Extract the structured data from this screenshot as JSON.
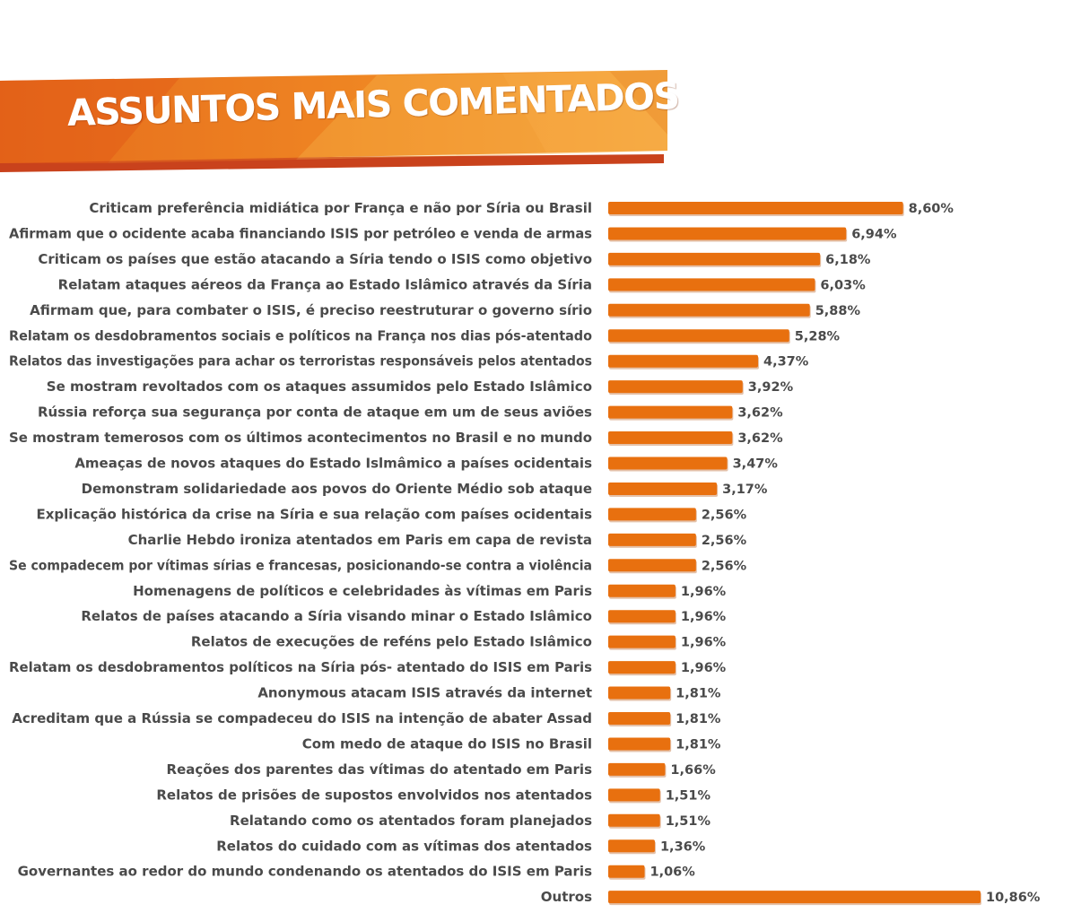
{
  "banner": {
    "title": "ASSUNTOS MAIS COMENTADOS"
  },
  "colors": {
    "bar": "#e8700f",
    "bar_shadow": "#b34d08",
    "banner_dark": "#e2651a",
    "banner_light": "#f6a93a",
    "banner_underline": "#c9421c",
    "text": "#4a4a4a"
  },
  "chart_data": {
    "type": "bar",
    "orientation": "horizontal",
    "grid": false,
    "legend": "none",
    "xlim": [
      0,
      10.86
    ],
    "categories": [
      "Criticam preferência midiática por França e não por Síria ou  Brasil",
      "Afirmam que o ocidente acaba financiando ISIS por petróleo e venda de armas",
      "Criticam os países que estão atacando a Síria tendo o ISIS como objetivo",
      "Relatam ataques aéreos da França ao Estado Islâmico através da Síria",
      "Afirmam que, para combater o ISIS, é preciso reestruturar o governo sírio",
      "Relatam os desdobramentos sociais e políticos na França nos dias pós-atentado",
      "Relatos das investigações para achar os terroristas responsáveis pelos atentados",
      "Se mostram revoltados com os ataques assumidos pelo Estado Islâmico",
      "Rússia reforça sua segurança por conta de ataque em um de seus aviões",
      "Se mostram temerosos com os últimos acontecimentos no Brasil e no mundo",
      "Ameaças de novos ataques do Estado Islmâmico a países ocidentais",
      "Demonstram solidariedade aos povos do Oriente Médio sob ataque",
      "Explicação histórica da crise na Síria e sua relação com países ocidentais",
      "Charlie Hebdo ironiza atentados em Paris em capa de revista",
      "Se compadecem por vítimas sírias e francesas, posicionando-se contra a violência",
      "Homenagens de políticos e celebridades às vítimas em Paris",
      "Relatos de países atacando  a Síria visando minar o Estado Islâmico",
      "Relatos de execuções de reféns pelo Estado Islâmico",
      "Relatam os desdobramentos políticos na Síria pós- atentado do ISIS em Paris",
      "Anonymous atacam ISIS através da internet",
      "Acreditam que a Rússia se compadeceu do ISIS na intenção de abater Assad",
      "Com medo de ataque do ISIS no Brasil",
      "Reações dos parentes das vítimas do atentado em Paris",
      "Relatos de prisões de supostos envolvidos nos atentados",
      "Relatando como os atentados foram planejados",
      "Relatos do cuidado com as vítimas dos atentados",
      "Governantes ao redor do mundo condenando os atentados do ISIS em Paris",
      "Outros"
    ],
    "values": [
      8.6,
      6.94,
      6.18,
      6.03,
      5.88,
      5.28,
      4.37,
      3.92,
      3.62,
      3.62,
      3.47,
      3.17,
      2.56,
      2.56,
      2.56,
      1.96,
      1.96,
      1.96,
      1.96,
      1.81,
      1.81,
      1.81,
      1.66,
      1.51,
      1.51,
      1.36,
      1.06,
      10.86
    ],
    "value_labels": [
      "8,60%",
      "6,94%",
      "6,18%",
      "6,03%",
      "5,88%",
      "5,28%",
      "4,37%",
      "3,92%",
      "3,62%",
      "3,62%",
      "3,47%",
      "3,17%",
      "2,56%",
      "2,56%",
      "2,56%",
      "1,96%",
      "1,96%",
      "1,96%",
      "1,96%",
      "1,81%",
      "1,81%",
      "1,81%",
      "1,66%",
      "1,51%",
      "1,51%",
      "1,36%",
      "1,06%",
      "10,86%"
    ],
    "unit": "%"
  }
}
